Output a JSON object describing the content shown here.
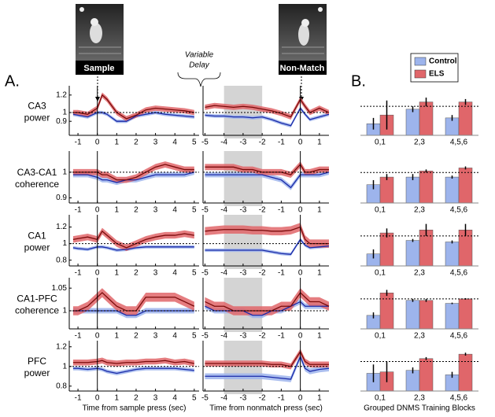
{
  "figure": {
    "panel_a": "A.",
    "panel_b": "B.",
    "sample": "Sample",
    "nonmatch": "Non-Match",
    "delay": [
      "Variable",
      "Delay"
    ],
    "legend": [
      {
        "name": "Control",
        "color": "#9db4ec",
        "line_color": "#1a2aa8"
      },
      {
        "name": "ELS",
        "color": "#e0666a",
        "line_color": "#7a0a0a"
      }
    ]
  },
  "chart_data": [
    {
      "type": "line",
      "ylabel": [
        "CA3",
        "power"
      ],
      "xlim": [
        -1.45,
        5.25
      ],
      "xticks": [
        -1,
        0,
        1,
        2,
        3,
        4,
        5
      ],
      "ylim": [
        0.74,
        1.27
      ],
      "yticks": [
        0.9,
        1,
        1.2
      ],
      "refline": 1,
      "event": 0,
      "x": [
        -1.25,
        -1,
        -0.5,
        0,
        0.25,
        0.5,
        1,
        1.5,
        2,
        2.5,
        3,
        3.5,
        4,
        4.5,
        5
      ],
      "series": [
        {
          "values": [
            0.98,
            0.97,
            0.95,
            1.0,
            1.0,
            0.98,
            0.9,
            0.9,
            0.96,
            0.98,
            1.0,
            0.98,
            0.97,
            0.96,
            0.95
          ],
          "band": 0.02
        },
        {
          "values": [
            1.0,
            1.0,
            0.98,
            1.05,
            1.2,
            1.15,
            1.0,
            0.93,
            0.97,
            1.03,
            1.05,
            1.04,
            1.03,
            1.02,
            1.0
          ],
          "band": 0.03
        }
      ]
    },
    {
      "type": "line",
      "xlim": [
        -5.1,
        1.5
      ],
      "xticks": [
        -5,
        -4,
        -3,
        -2,
        -1,
        0,
        1
      ],
      "ylim": [
        0.74,
        1.27
      ],
      "refline": 1,
      "event": 0,
      "shade": [
        -4,
        -2
      ],
      "x": [
        -5,
        -4.5,
        -4,
        -3.5,
        -3,
        -2.5,
        -2,
        -1.5,
        -1,
        -0.5,
        0,
        0.25,
        0.5,
        1,
        1.5
      ],
      "series": [
        {
          "values": [
            0.97,
            0.96,
            0.96,
            0.95,
            0.95,
            0.94,
            0.95,
            0.92,
            0.88,
            0.85,
            1.05,
            0.98,
            0.92,
            0.95,
            0.98
          ],
          "band": 0.02
        },
        {
          "values": [
            1.06,
            1.08,
            1.07,
            1.06,
            1.07,
            1.06,
            1.04,
            1.02,
            0.99,
            0.95,
            1.15,
            1.07,
            1.0,
            1.05,
            1.0
          ],
          "band": 0.03
        }
      ]
    },
    {
      "type": "bar",
      "categories": [
        "0,1",
        "2,3",
        "4,5,6"
      ],
      "ylim": [
        0.8,
        1.12
      ],
      "refline": 1,
      "series": [
        {
          "values": [
            0.88,
            0.98,
            0.92
          ],
          "errors": [
            0.04,
            0.02,
            0.02
          ]
        },
        {
          "values": [
            0.94,
            1.03,
            1.03
          ],
          "errors": [
            0.1,
            0.03,
            0.02
          ]
        }
      ]
    },
    {
      "type": "line",
      "ylabel": [
        "CA3-CA1",
        "coherence"
      ],
      "xlim": [
        -1.45,
        5.25
      ],
      "xticks": [
        -1,
        0,
        1,
        2,
        3,
        4,
        5
      ],
      "ylim": [
        0.88,
        1.07
      ],
      "yticks": [
        0.9,
        1
      ],
      "refline": 1,
      "event": 0,
      "x": [
        -1.25,
        -1,
        -0.5,
        0,
        0.25,
        0.5,
        1,
        1.5,
        2,
        2.5,
        3,
        3.5,
        4,
        4.5,
        5
      ],
      "series": [
        {
          "values": [
            0.99,
            0.99,
            0.99,
            0.98,
            0.97,
            0.97,
            0.96,
            0.97,
            0.97,
            0.98,
            0.99,
            0.99,
            0.99,
            0.99,
            1.0
          ],
          "band": 0.01
        },
        {
          "values": [
            1.0,
            1.0,
            1.0,
            1.0,
            0.99,
            0.99,
            0.97,
            0.97,
            0.98,
            1.0,
            1.02,
            1.03,
            1.02,
            1.01,
            1.01
          ],
          "band": 0.012
        }
      ]
    },
    {
      "type": "line",
      "xlim": [
        -5.1,
        1.5
      ],
      "xticks": [
        -5,
        -4,
        -3,
        -2,
        -1,
        0,
        1
      ],
      "ylim": [
        0.88,
        1.07
      ],
      "refline": 1,
      "event": 0,
      "shade": [
        -4,
        -2
      ],
      "x": [
        -5,
        -4.5,
        -4,
        -3.5,
        -3,
        -2.5,
        -2,
        -1.5,
        -1,
        -0.5,
        0,
        0.25,
        0.5,
        1,
        1.5
      ],
      "series": [
        {
          "values": [
            0.99,
            0.99,
            0.99,
            0.99,
            0.99,
            0.99,
            0.99,
            0.98,
            0.97,
            0.94,
            0.99,
            0.99,
            0.99,
            0.99,
            1.0
          ],
          "band": 0.01
        },
        {
          "values": [
            1.02,
            1.02,
            1.02,
            1.02,
            1.01,
            1.01,
            1.0,
            1.0,
            1.0,
            0.99,
            1.03,
            1.0,
            1.0,
            1.01,
            1.01
          ],
          "band": 0.012
        }
      ]
    },
    {
      "type": "bar",
      "categories": [
        "0,1",
        "2,3",
        "4,5,6"
      ],
      "ylim": [
        0.8,
        1.12
      ],
      "refline": 1,
      "series": [
        {
          "values": [
            0.92,
            0.97,
            0.97
          ],
          "errors": [
            0.03,
            0.02,
            0.01
          ]
        },
        {
          "values": [
            0.97,
            1.01,
            1.03
          ],
          "errors": [
            0.02,
            0.01,
            0.01
          ]
        }
      ]
    },
    {
      "type": "line",
      "ylabel": [
        "CA1",
        "power"
      ],
      "xlim": [
        -1.45,
        5.25
      ],
      "xticks": [
        -1,
        0,
        1,
        2,
        3,
        4,
        5
      ],
      "ylim": [
        0.73,
        1.31
      ],
      "yticks": [
        0.8,
        1,
        1.2
      ],
      "refline": 1,
      "event": 0,
      "x": [
        -1.25,
        -1,
        -0.5,
        0,
        0.25,
        0.5,
        1,
        1.5,
        2,
        2.5,
        3,
        3.5,
        4,
        4.5,
        5
      ],
      "series": [
        {
          "values": [
            0.95,
            0.94,
            0.93,
            0.96,
            0.96,
            0.95,
            0.92,
            0.93,
            0.95,
            0.96,
            0.96,
            0.96,
            0.96,
            0.96,
            0.96
          ],
          "band": 0.02
        },
        {
          "values": [
            1.05,
            1.06,
            1.08,
            1.05,
            1.15,
            1.1,
            1.0,
            0.95,
            1.0,
            1.05,
            1.08,
            1.1,
            1.1,
            1.12,
            1.1
          ],
          "band": 0.04
        }
      ]
    },
    {
      "type": "line",
      "xlim": [
        -5.1,
        1.5
      ],
      "xticks": [
        -5,
        -4,
        -3,
        -2,
        -1,
        0,
        1
      ],
      "ylim": [
        0.73,
        1.31
      ],
      "refline": 1,
      "event": 0,
      "shade": [
        -4,
        -2
      ],
      "x": [
        -5,
        -4.5,
        -4,
        -3.5,
        -3,
        -2.5,
        -2,
        -1.5,
        -1,
        -0.5,
        0,
        0.25,
        0.5,
        1,
        1.5
      ],
      "series": [
        {
          "values": [
            0.92,
            0.92,
            0.92,
            0.92,
            0.92,
            0.92,
            0.92,
            0.9,
            0.88,
            0.87,
            1.05,
            0.98,
            0.95,
            0.96,
            0.97
          ],
          "band": 0.02
        },
        {
          "values": [
            1.15,
            1.16,
            1.17,
            1.17,
            1.17,
            1.16,
            1.16,
            1.15,
            1.15,
            1.16,
            1.2,
            1.05,
            1.0,
            1.0,
            1.0
          ],
          "band": 0.05
        }
      ]
    },
    {
      "type": "bar",
      "categories": [
        "0,1",
        "2,3",
        "4,5,6"
      ],
      "ylim": [
        0.8,
        1.12
      ],
      "refline": 1,
      "series": [
        {
          "values": [
            0.88,
            0.97,
            0.96
          ],
          "errors": [
            0.03,
            0.01,
            0.01
          ]
        },
        {
          "values": [
            1.02,
            1.04,
            1.04
          ],
          "errors": [
            0.03,
            0.04,
            0.04
          ]
        }
      ]
    },
    {
      "type": "line",
      "ylabel": [
        "CA1-PFC",
        "coherence"
      ],
      "xlim": [
        -1.45,
        5.25
      ],
      "xticks": [
        -1,
        0,
        1,
        2,
        3,
        4,
        5
      ],
      "ylim": [
        0.96,
        1.066
      ],
      "yticks": [
        1,
        1.05
      ],
      "refline": 1,
      "event": 0,
      "x": [
        -1.25,
        -1,
        -0.5,
        0,
        0.25,
        0.5,
        1,
        1.5,
        2,
        2.5,
        3,
        3.5,
        4,
        4.5,
        5
      ],
      "series": [
        {
          "values": [
            1.0,
            1.0,
            1.0,
            1.0,
            1.0,
            1.0,
            1.0,
            0.99,
            0.99,
            1.0,
            1.0,
            1.0,
            1.0,
            1.0,
            1.0
          ],
          "band": 0.006
        },
        {
          "values": [
            1.0,
            1.0,
            1.01,
            1.03,
            1.04,
            1.03,
            1.01,
            1.0,
            1.0,
            1.03,
            1.03,
            1.03,
            1.03,
            1.02,
            1.01
          ],
          "band": 0.01
        }
      ]
    },
    {
      "type": "line",
      "xlim": [
        -5.1,
        1.5
      ],
      "xticks": [
        -5,
        -4,
        -3,
        -2,
        -1,
        0,
        1
      ],
      "ylim": [
        0.96,
        1.066
      ],
      "refline": 1,
      "event": 0,
      "shade": [
        -4,
        -2
      ],
      "x": [
        -5,
        -4.5,
        -4,
        -3.5,
        -3,
        -2.5,
        -2,
        -1.5,
        -1,
        -0.5,
        0,
        0.25,
        0.5,
        1,
        1.5
      ],
      "series": [
        {
          "values": [
            1.01,
            1.0,
            1.0,
            1.0,
            1.0,
            0.99,
            0.99,
            1.0,
            1.0,
            1.01,
            1.02,
            1.01,
            1.01,
            1.01,
            1.01
          ],
          "band": 0.006
        },
        {
          "values": [
            1.02,
            1.01,
            1.01,
            1.0,
            1.0,
            1.0,
            1.0,
            1.0,
            1.01,
            1.01,
            1.04,
            1.03,
            1.02,
            1.02,
            1.01
          ],
          "band": 0.01
        }
      ]
    },
    {
      "type": "bar",
      "categories": [
        "0,1",
        "2,3",
        "4,5,6"
      ],
      "ylim": [
        0.8,
        1.12
      ],
      "refline": 1,
      "series": [
        {
          "values": [
            0.89,
            0.99,
            0.97
          ],
          "errors": [
            0.02,
            0.01,
            0.005
          ]
        },
        {
          "values": [
            1.04,
            0.99,
            1.0
          ],
          "errors": [
            0.02,
            0.01,
            0.005
          ]
        }
      ]
    },
    {
      "type": "line",
      "ylabel": [
        "PFC",
        "power"
      ],
      "xlabel": "Time from sample press (sec)",
      "xlim": [
        -1.45,
        5.25
      ],
      "xticks": [
        -1,
        0,
        1,
        2,
        3,
        4,
        5
      ],
      "ylim": [
        0.75,
        1.23
      ],
      "yticks": [
        0.8,
        1,
        1.2
      ],
      "refline": 1,
      "event": 0,
      "x": [
        -1.25,
        -1,
        -0.5,
        0,
        0.25,
        0.5,
        1,
        1.5,
        2,
        2.5,
        3,
        3.5,
        4,
        4.5,
        5
      ],
      "series": [
        {
          "values": [
            0.98,
            0.98,
            0.97,
            0.98,
            0.97,
            0.95,
            0.93,
            0.95,
            0.97,
            0.98,
            0.98,
            0.98,
            0.98,
            0.97,
            0.96
          ],
          "band": 0.02
        },
        {
          "values": [
            1.04,
            1.04,
            1.04,
            1.05,
            1.06,
            1.04,
            1.03,
            1.04,
            1.04,
            1.05,
            1.05,
            1.06,
            1.04,
            1.05,
            1.03
          ],
          "band": 0.03
        }
      ]
    },
    {
      "type": "line",
      "xlabel": "Time from nonmatch press (sec)",
      "xlim": [
        -5.1,
        1.5
      ],
      "xticks": [
        -5,
        -4,
        -3,
        -2,
        -1,
        0,
        1
      ],
      "ylim": [
        0.75,
        1.23
      ],
      "refline": 1,
      "event": 0,
      "shade": [
        -4,
        -2
      ],
      "x": [
        -5,
        -4.5,
        -4,
        -3.5,
        -3,
        -2.5,
        -2,
        -1.5,
        -1,
        -0.5,
        0,
        0.25,
        0.5,
        1,
        1.5
      ],
      "series": [
        {
          "values": [
            0.9,
            0.9,
            0.9,
            0.9,
            0.9,
            0.9,
            0.9,
            0.89,
            0.88,
            0.87,
            1.1,
            0.98,
            0.95,
            0.97,
            0.98
          ],
          "band": 0.03
        },
        {
          "values": [
            1.03,
            1.03,
            1.03,
            1.03,
            1.03,
            1.03,
            1.03,
            1.02,
            1.02,
            1.0,
            1.15,
            1.05,
            1.02,
            1.02,
            1.02
          ],
          "band": 0.03
        }
      ]
    },
    {
      "type": "bar",
      "xlabel": "Grouped DNMS Training Blocks",
      "categories": [
        "0,1",
        "2,3",
        "4,5,6"
      ],
      "ylim": [
        0.8,
        1.12
      ],
      "refline": 1,
      "series": [
        {
          "values": [
            0.92,
            0.94,
            0.91
          ],
          "errors": [
            0.06,
            0.02,
            0.02
          ]
        },
        {
          "values": [
            0.93,
            1.02,
            1.05
          ],
          "errors": [
            0.07,
            0.01,
            0.01
          ]
        }
      ]
    }
  ]
}
